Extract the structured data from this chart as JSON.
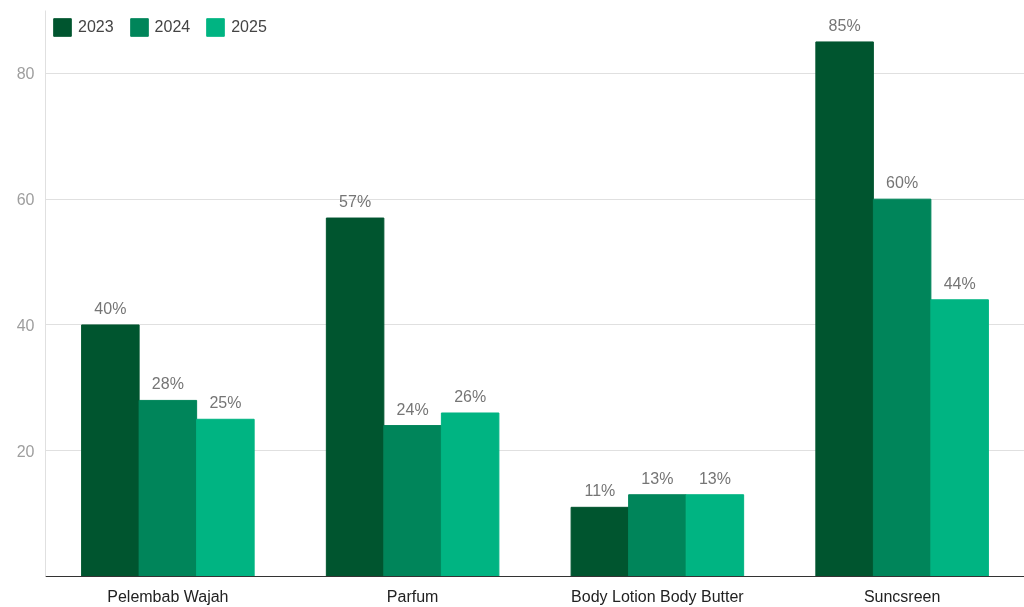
{
  "chart_data": {
    "type": "bar",
    "categories": [
      "Pelembab Wajah",
      "Parfum",
      "Body Lotion Body Butter",
      "Suncsreen"
    ],
    "series": [
      {
        "name": "2023",
        "color": "#00552f",
        "values": [
          40,
          57,
          11,
          85
        ],
        "value_labels": [
          "40%",
          "57%",
          "11%",
          "85%"
        ]
      },
      {
        "name": "2024",
        "color": "#00855a",
        "values": [
          28,
          24,
          13,
          60
        ],
        "value_labels": [
          "28%",
          "24%",
          "13%",
          "60%"
        ]
      },
      {
        "name": "2025",
        "color": "#00b482",
        "values": [
          25,
          26,
          13,
          44
        ],
        "value_labels": [
          "25%",
          "26%",
          "13%",
          "44%"
        ]
      }
    ],
    "ylim": [
      0,
      90
    ],
    "yticks": [
      20,
      40,
      60,
      80
    ],
    "grid": "y",
    "legend": "top left"
  }
}
